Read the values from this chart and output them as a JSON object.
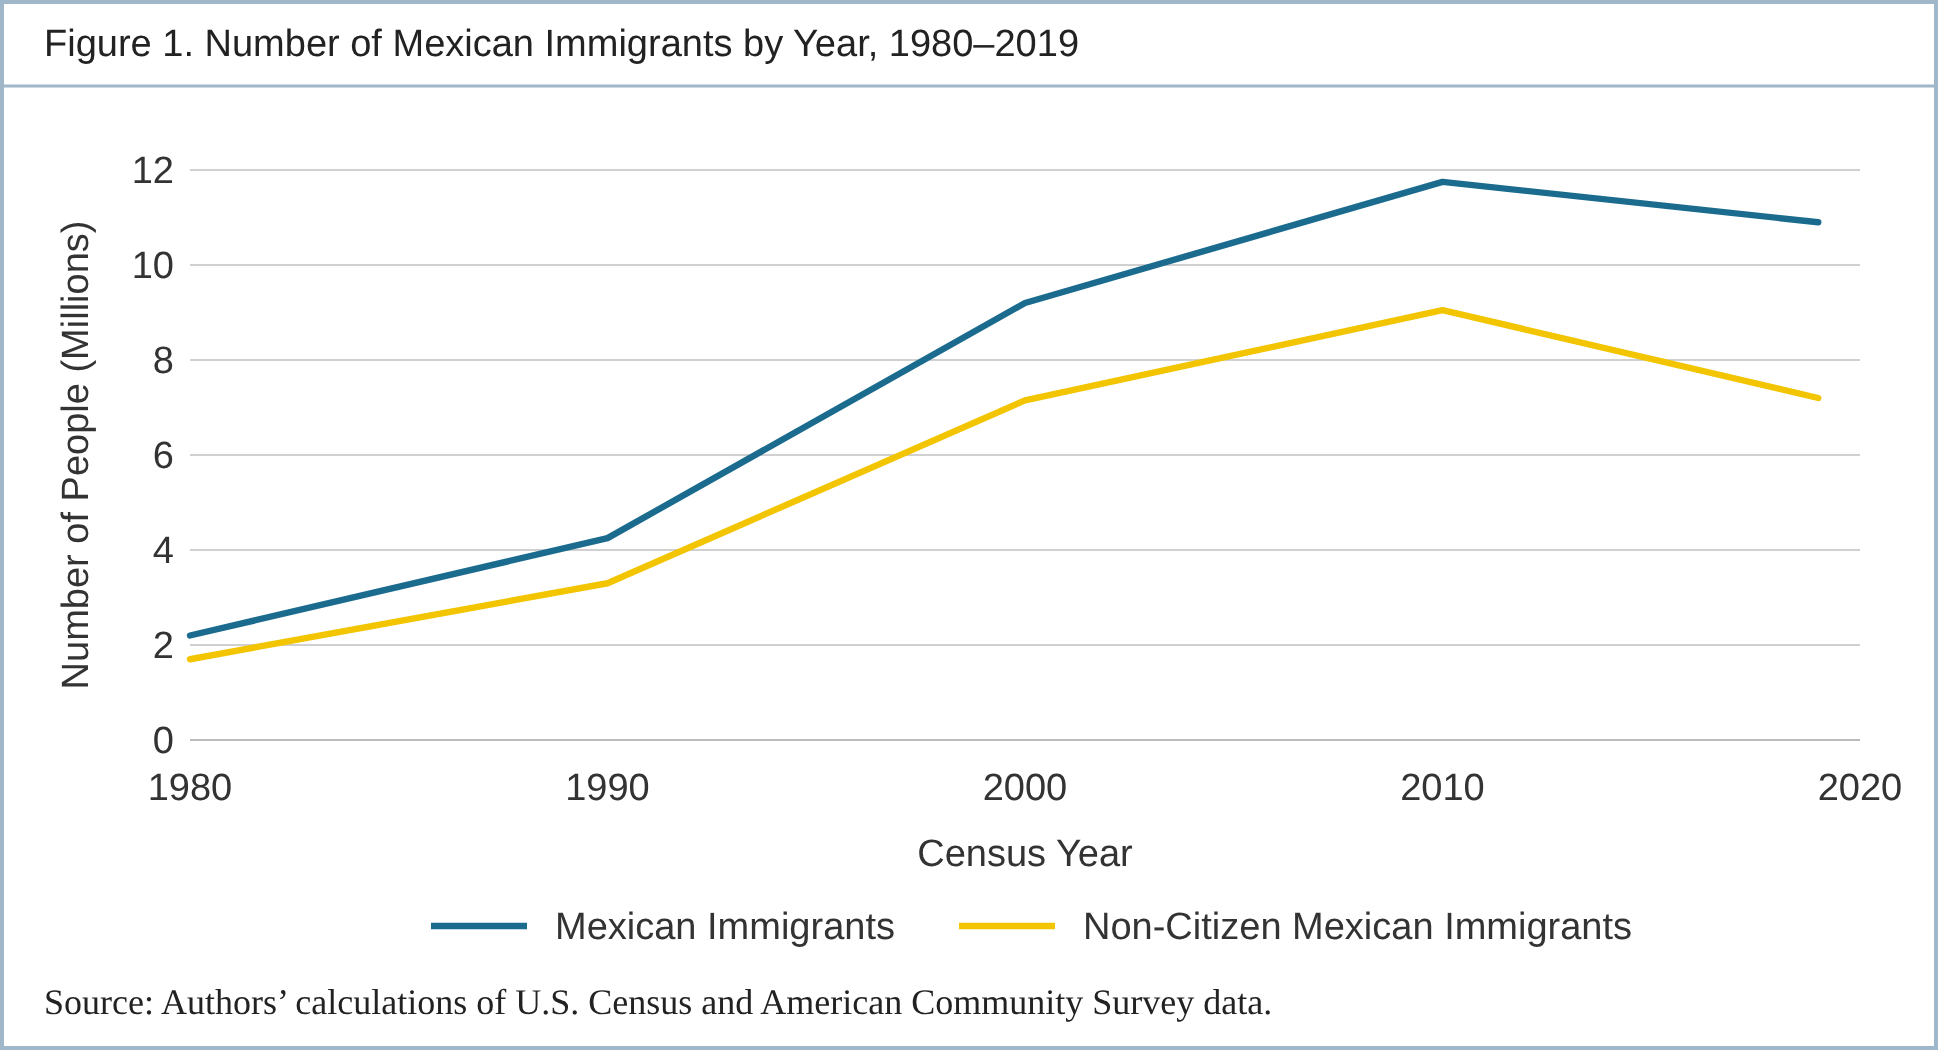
{
  "chart_data": {
    "type": "line",
    "title": "Figure 1. Number of Mexican Immigrants by Year, 1980–2019",
    "xlabel": "Census Year",
    "ylabel": "Number of People (Millions)",
    "x": [
      1980,
      1990,
      2000,
      2010,
      2019
    ],
    "series": [
      {
        "name": "Mexican Immigrants",
        "color": "#1b6b8f",
        "values": [
          2.2,
          4.25,
          9.2,
          11.75,
          10.9
        ]
      },
      {
        "name": "Non-Citizen Mexican Immigrants",
        "color": "#f2c500",
        "values": [
          1.7,
          3.3,
          7.15,
          9.05,
          7.2
        ]
      }
    ],
    "xlim": [
      1980,
      2020
    ],
    "xticks": [
      1980,
      1990,
      2000,
      2010,
      2020
    ],
    "ylim": [
      0,
      12
    ],
    "yticks": [
      0,
      2,
      4,
      6,
      8,
      10,
      12
    ],
    "grid": "y",
    "legend": "bottom",
    "marker": "none",
    "line_style": "solid",
    "annotations": [
      "Source: Authors’ calculations of U.S. Census and American Community Survey data."
    ]
  }
}
